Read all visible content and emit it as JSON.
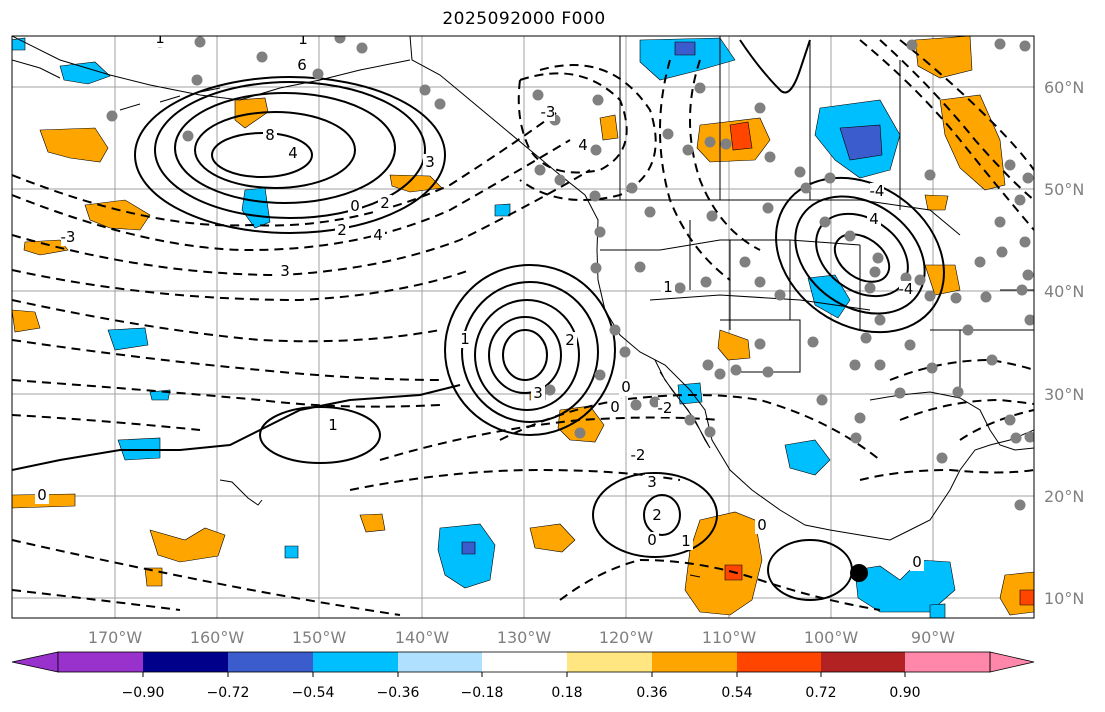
{
  "title": "2025092000 F000",
  "map": {
    "lon_labels": [
      "170°W",
      "160°W",
      "150°W",
      "140°W",
      "130°W",
      "120°W",
      "110°W",
      "100°W",
      "90°W"
    ],
    "lat_labels": [
      "60°N",
      "50°N",
      "40°N",
      "30°N",
      "20°N",
      "10°N"
    ],
    "contour_labels": [
      "1",
      "1",
      "6",
      "8",
      "4",
      "3",
      "2",
      "0",
      "2",
      "4",
      "3",
      "-3",
      "4",
      "2",
      "3",
      "1",
      "-3",
      "0",
      "1",
      "0",
      "-2",
      "0",
      "-2",
      "3",
      "2",
      "0",
      "1",
      "0",
      "0",
      "-4",
      "4",
      "1",
      "-4"
    ],
    "colors": {
      "land_outline": "#000000",
      "grid": "#a0a0a0",
      "dots": "#808080",
      "marker": "#000000"
    }
  },
  "colorbar": {
    "tick_labels": [
      "−0.90",
      "−0.72",
      "−0.54",
      "−0.36",
      "−0.18",
      "0.18",
      "0.36",
      "0.54",
      "0.72",
      "0.90"
    ],
    "bins": [
      {
        "color": "#9932CC"
      },
      {
        "color": "#00008B"
      },
      {
        "color": "#3A5CCC"
      },
      {
        "color": "#00BFFF"
      },
      {
        "color": "#B0E0FF"
      },
      {
        "color": "#FFFFFF"
      },
      {
        "color": "#FFE680"
      },
      {
        "color": "#FFA500"
      },
      {
        "color": "#FF4500"
      },
      {
        "color": "#B22222"
      },
      {
        "color": "#FF88AA"
      }
    ]
  }
}
